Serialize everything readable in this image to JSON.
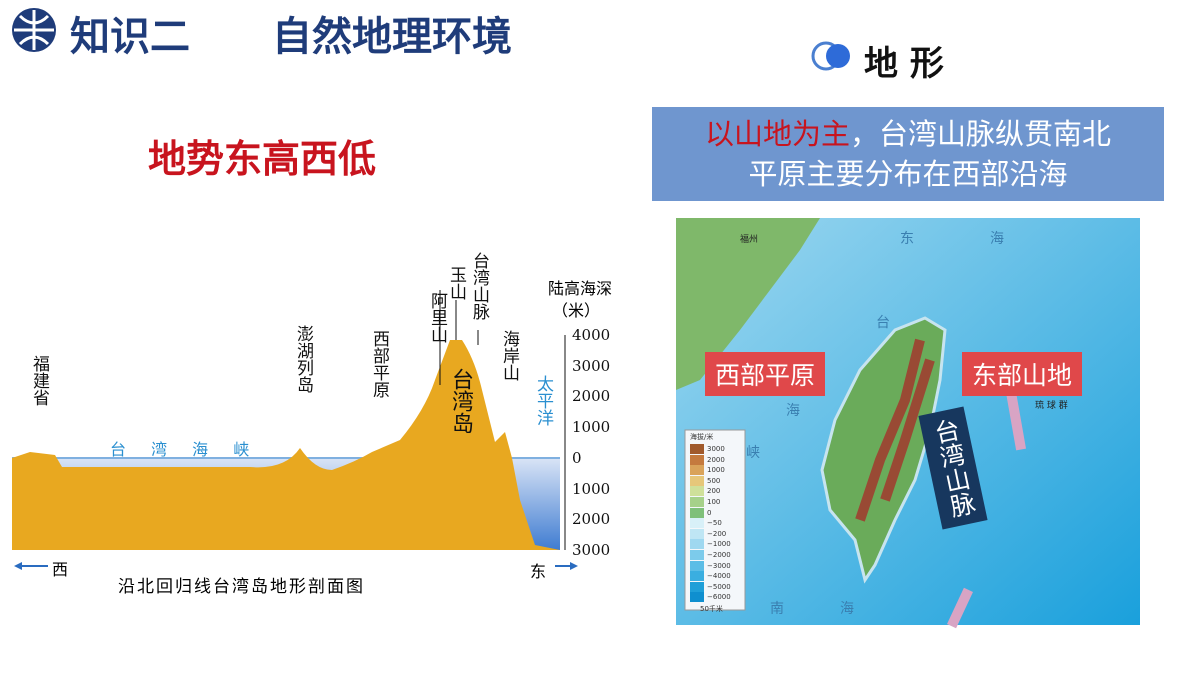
{
  "header": {
    "section": "知识二",
    "title": "自然地理环境",
    "topic": "地 形"
  },
  "profile": {
    "headline": "地势东高西低",
    "caption": "沿北回归线台湾岛地形剖面图",
    "axis_title": "陆高海深",
    "axis_unit": "（米）",
    "ticks": [
      "4000",
      "3000",
      "2000",
      "1000",
      "0",
      "1000",
      "2000",
      "3000"
    ],
    "labels": {
      "fujian": "福建省",
      "penghu": "澎湖列岛",
      "plain": "西部平原",
      "alishan": "阿里山",
      "yushan": "玉山",
      "range": "台湾山脉",
      "coast": "海岸山",
      "pacific": "太平洋",
      "island": "台湾岛",
      "strait": "台 湾 海 峡"
    },
    "west": "西",
    "east": "东"
  },
  "summary": {
    "highlight": "以山地为主",
    "line1_rest": "，台湾山脉纵贯南北",
    "line2": "平原主要分布在西部沿海"
  },
  "map": {
    "callouts": {
      "west": "西部平原",
      "east": "东部山地",
      "range": "台湾山脉"
    },
    "labels": {
      "east_sea": "东",
      "east_sea2": "海",
      "tai": "台",
      "strait": "海",
      "xia": "峡",
      "south": "南",
      "south2": "海",
      "fuzhou": "福州",
      "ryukyu": "琉 球 群"
    },
    "legend": {
      "title": "海拔/米",
      "values": [
        "3000",
        "2000",
        "1000",
        "500",
        "200",
        "100",
        "0",
        "−50",
        "−200",
        "−1000",
        "−2000",
        "−3000",
        "−4000",
        "−5000",
        "−6000"
      ]
    },
    "scale": "50千米"
  }
}
